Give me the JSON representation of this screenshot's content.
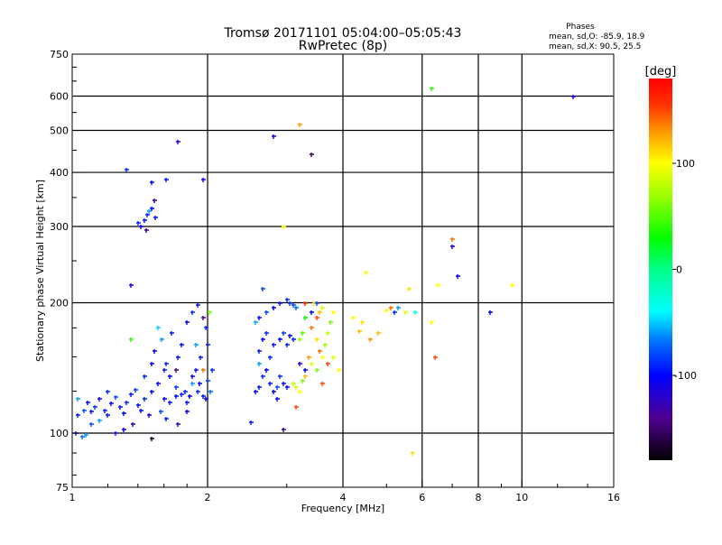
{
  "chart_data": {
    "type": "scatter",
    "title": "Tromsø 20171101 05:04:00–05:05:43",
    "subtitle": "RwPretec (8p)",
    "xlabel": "Frequency [MHz]",
    "ylabel": "Stationary phase Virtual Height [km]",
    "xscale": "log",
    "yscale": "log",
    "xlim": [
      1,
      16
    ],
    "ylim": [
      75,
      750
    ],
    "xticks": [
      1,
      2,
      4,
      6,
      8,
      10,
      16
    ],
    "yticks": [
      75,
      100,
      200,
      300,
      400,
      500,
      600,
      750
    ],
    "xgrid": [
      2,
      4,
      6,
      8,
      10
    ],
    "ygrid": [
      100,
      200,
      300,
      400,
      500,
      600
    ],
    "grid": true,
    "stats": {
      "title": "Phases",
      "line_o": "mean, sd,O: -85.9, 18.9",
      "line_x": "mean, sd,X:  90.5, 25.5"
    },
    "colorbar": {
      "label": "[deg]",
      "range": [
        -180,
        180
      ],
      "ticks": [
        100,
        0,
        -100
      ],
      "placement": "right"
    },
    "point_fields": [
      "frequency_mhz",
      "height_km",
      "phase_deg"
    ],
    "points": [
      [
        1.02,
        100,
        -90
      ],
      [
        1.05,
        98,
        -70
      ],
      [
        1.07,
        99,
        -60
      ],
      [
        1.03,
        110,
        -95
      ],
      [
        1.06,
        113,
        -80
      ],
      [
        1.08,
        118,
        -100
      ],
      [
        1.1,
        112,
        -95
      ],
      [
        1.12,
        115,
        -85
      ],
      [
        1.15,
        120,
        -100
      ],
      [
        1.18,
        113,
        -90
      ],
      [
        1.2,
        110,
        -95
      ],
      [
        1.22,
        117,
        -100
      ],
      [
        1.25,
        121,
        -80
      ],
      [
        1.28,
        115,
        -95
      ],
      [
        1.3,
        111,
        -100
      ],
      [
        1.32,
        118,
        -90
      ],
      [
        1.35,
        123,
        -95
      ],
      [
        1.38,
        126,
        -85
      ],
      [
        1.4,
        116,
        -100
      ],
      [
        1.42,
        113,
        -95
      ],
      [
        1.1,
        105,
        -80
      ],
      [
        1.15,
        107,
        -60
      ],
      [
        1.25,
        100,
        -95
      ],
      [
        1.3,
        102,
        -100
      ],
      [
        1.45,
        120,
        -90
      ],
      [
        1.5,
        125,
        -100
      ],
      [
        1.48,
        110,
        -110
      ],
      [
        1.36,
        105,
        -120
      ],
      [
        1.03,
        120,
        -60
      ],
      [
        1.2,
        125,
        -90
      ],
      [
        1.55,
        130,
        -100
      ],
      [
        1.6,
        140,
        -95
      ],
      [
        1.62,
        145,
        -90
      ],
      [
        1.65,
        135,
        -100
      ],
      [
        1.7,
        128,
        -85
      ],
      [
        1.72,
        150,
        -95
      ],
      [
        1.75,
        160,
        -100
      ],
      [
        1.78,
        125,
        -90
      ],
      [
        1.8,
        118,
        -95
      ],
      [
        1.82,
        122,
        -100
      ],
      [
        1.85,
        135,
        -110
      ],
      [
        1.88,
        140,
        -95
      ],
      [
        1.9,
        125,
        -90
      ],
      [
        1.92,
        130,
        -100
      ],
      [
        1.95,
        122,
        -95
      ],
      [
        1.98,
        120,
        -100
      ],
      [
        2.0,
        132,
        -85
      ],
      [
        2.03,
        125,
        -70
      ],
      [
        1.6,
        120,
        -100
      ],
      [
        1.65,
        118,
        -95
      ],
      [
        1.7,
        122,
        -100
      ],
      [
        1.75,
        123,
        -90
      ],
      [
        1.52,
        155,
        -100
      ],
      [
        1.58,
        165,
        -60
      ],
      [
        1.66,
        170,
        -95
      ],
      [
        1.8,
        180,
        -100
      ],
      [
        1.85,
        190,
        -90
      ],
      [
        1.9,
        198,
        -95
      ],
      [
        1.95,
        185,
        -140
      ],
      [
        1.98,
        175,
        -90
      ],
      [
        2.02,
        190,
        60
      ],
      [
        1.88,
        160,
        -60
      ],
      [
        1.93,
        150,
        -95
      ],
      [
        1.95,
        140,
        140
      ],
      [
        1.7,
        140,
        -130
      ],
      [
        1.57,
        112,
        -80
      ],
      [
        1.5,
        145,
        -100
      ],
      [
        1.55,
        175,
        -50
      ],
      [
        1.45,
        135,
        -90
      ],
      [
        1.62,
        108,
        -95
      ],
      [
        1.72,
        105,
        -120
      ],
      [
        1.8,
        112,
        -100
      ],
      [
        1.85,
        130,
        -60
      ],
      [
        2.05,
        140,
        -90
      ],
      [
        2.0,
        160,
        -95
      ],
      [
        1.42,
        300,
        -100
      ],
      [
        1.45,
        310,
        -95
      ],
      [
        1.47,
        320,
        -90
      ],
      [
        1.5,
        330,
        -100
      ],
      [
        1.52,
        345,
        -130
      ],
      [
        1.53,
        315,
        -95
      ],
      [
        1.48,
        325,
        -60
      ],
      [
        1.4,
        306,
        -90
      ],
      [
        1.46,
        295,
        -150
      ],
      [
        1.5,
        380,
        -100
      ],
      [
        1.62,
        385,
        -95
      ],
      [
        1.72,
        470,
        -110
      ],
      [
        1.32,
        405,
        -90
      ],
      [
        1.35,
        220,
        -110
      ],
      [
        1.35,
        165,
        40
      ],
      [
        1.5,
        97,
        -170
      ],
      [
        1.95,
        385,
        -110
      ],
      [
        2.55,
        125,
        -100
      ],
      [
        2.6,
        128,
        -95
      ],
      [
        2.65,
        135,
        -90
      ],
      [
        2.7,
        140,
        -100
      ],
      [
        2.75,
        130,
        -95
      ],
      [
        2.8,
        125,
        -100
      ],
      [
        2.85,
        128,
        -80
      ],
      [
        2.9,
        135,
        -90
      ],
      [
        2.95,
        130,
        -95
      ],
      [
        3.0,
        128,
        -100
      ],
      [
        2.6,
        155,
        -95
      ],
      [
        2.65,
        165,
        -100
      ],
      [
        2.7,
        170,
        -90
      ],
      [
        2.8,
        160,
        -95
      ],
      [
        2.9,
        165,
        -100
      ],
      [
        2.95,
        170,
        -85
      ],
      [
        3.0,
        160,
        -95
      ],
      [
        3.05,
        168,
        -100
      ],
      [
        3.1,
        165,
        -90
      ],
      [
        2.55,
        180,
        -60
      ],
      [
        2.6,
        185,
        -95
      ],
      [
        2.7,
        190,
        -80
      ],
      [
        2.8,
        195,
        -100
      ],
      [
        2.9,
        200,
        -95
      ],
      [
        3.0,
        203,
        -90
      ],
      [
        3.05,
        200,
        -85
      ],
      [
        3.1,
        198,
        -80
      ],
      [
        3.15,
        195,
        -70
      ],
      [
        2.6,
        145,
        -60
      ],
      [
        2.75,
        150,
        -90
      ],
      [
        2.85,
        120,
        -100
      ],
      [
        2.95,
        102,
        -130
      ],
      [
        2.5,
        106,
        -95
      ],
      [
        2.8,
        485,
        -110
      ],
      [
        2.95,
        300,
        100
      ],
      [
        3.2,
        515,
        130
      ],
      [
        3.4,
        440,
        -150
      ],
      [
        2.65,
        215,
        -80
      ],
      [
        3.1,
        130,
        80
      ],
      [
        3.15,
        128,
        90
      ],
      [
        3.2,
        125,
        100
      ],
      [
        3.25,
        132,
        60
      ],
      [
        3.3,
        135,
        120
      ],
      [
        3.35,
        150,
        130
      ],
      [
        3.4,
        145,
        90
      ],
      [
        3.5,
        165,
        110
      ],
      [
        3.55,
        155,
        140
      ],
      [
        3.6,
        150,
        100
      ],
      [
        3.65,
        160,
        70
      ],
      [
        3.7,
        170,
        80
      ],
      [
        3.75,
        180,
        60
      ],
      [
        3.8,
        190,
        100
      ],
      [
        3.5,
        185,
        150
      ],
      [
        3.55,
        190,
        120
      ],
      [
        3.6,
        195,
        90
      ],
      [
        3.45,
        200,
        110
      ],
      [
        3.3,
        200,
        160
      ],
      [
        3.4,
        175,
        140
      ],
      [
        3.2,
        165,
        70
      ],
      [
        3.7,
        145,
        150
      ],
      [
        3.8,
        150,
        90
      ],
      [
        3.9,
        140,
        100
      ],
      [
        3.5,
        140,
        60
      ],
      [
        3.6,
        130,
        150
      ],
      [
        3.4,
        190,
        -100
      ],
      [
        3.5,
        200,
        -80
      ],
      [
        3.3,
        185,
        30
      ],
      [
        3.25,
        170,
        50
      ],
      [
        3.3,
        140,
        -100
      ],
      [
        3.2,
        145,
        -110
      ],
      [
        3.15,
        115,
        150
      ],
      [
        4.5,
        235,
        100
      ],
      [
        4.6,
        165,
        130
      ],
      [
        4.4,
        180,
        110
      ],
      [
        4.8,
        170,
        120
      ],
      [
        5.0,
        192,
        100
      ],
      [
        5.1,
        195,
        140
      ],
      [
        5.2,
        190,
        -90
      ],
      [
        5.3,
        195,
        -60
      ],
      [
        5.5,
        190,
        90
      ],
      [
        5.6,
        215,
        110
      ],
      [
        5.7,
        90,
        110
      ],
      [
        6.3,
        625,
        40
      ],
      [
        6.4,
        150,
        150
      ],
      [
        6.3,
        180,
        100
      ],
      [
        6.5,
        220,
        100
      ],
      [
        7.0,
        280,
        140
      ],
      [
        7.0,
        270,
        -110
      ],
      [
        7.2,
        230,
        -100
      ],
      [
        8.5,
        190,
        -100
      ],
      [
        9.5,
        220,
        100
      ],
      [
        13,
        600,
        -110
      ],
      [
        4.2,
        185,
        100
      ],
      [
        4.35,
        172,
        120
      ],
      [
        5.8,
        190,
        -30
      ]
    ]
  }
}
